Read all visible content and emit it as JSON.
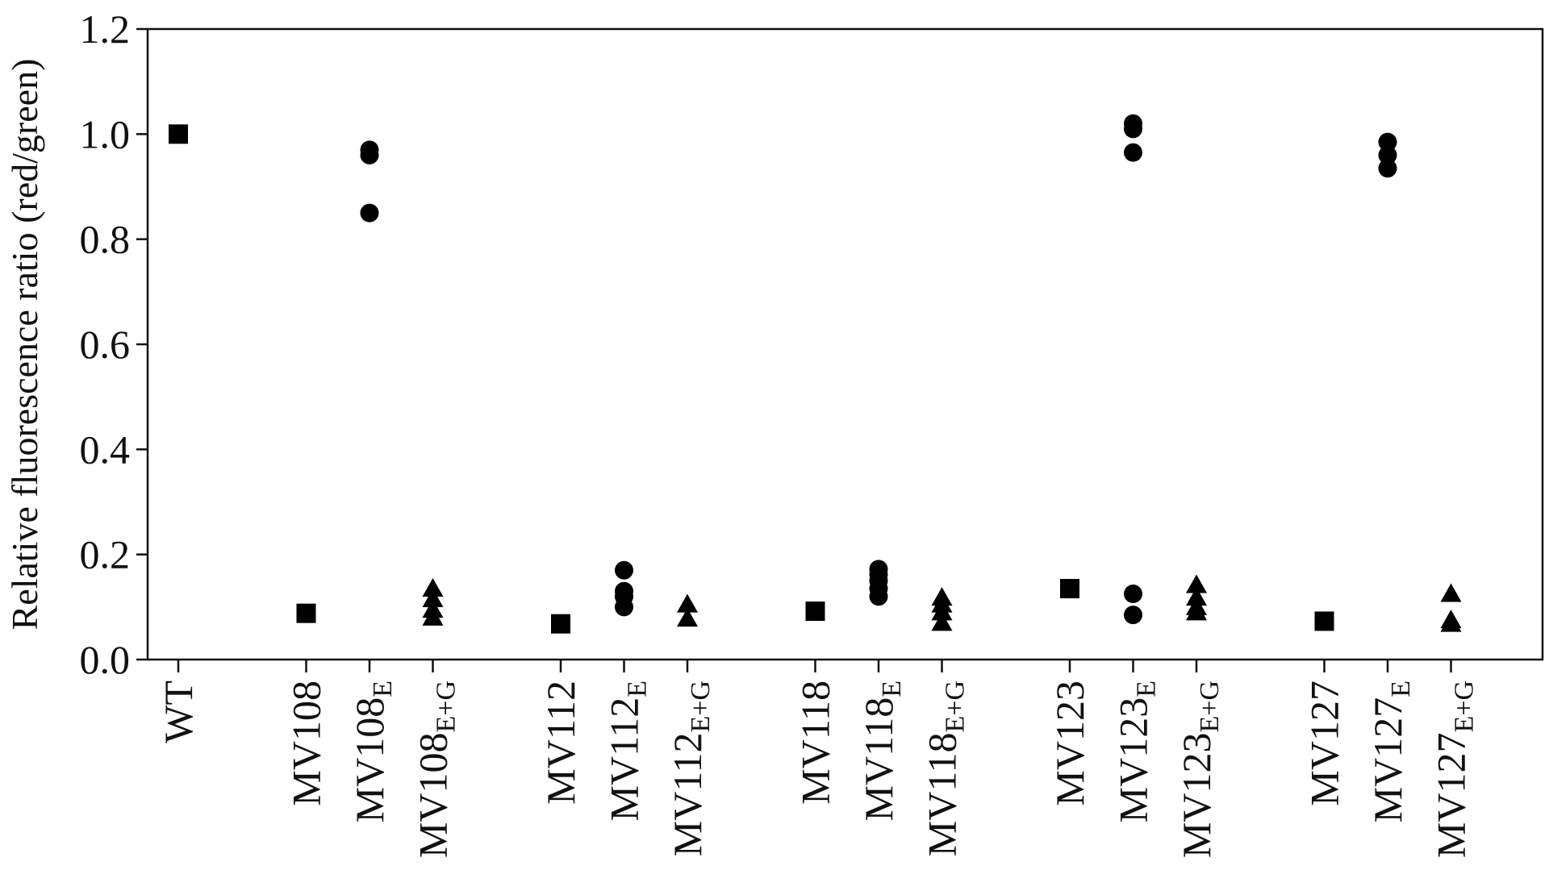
{
  "chart_data": {
    "type": "scatter",
    "ylabel": "Relative fluorescence ratio (red/green)",
    "xlabel": "",
    "ylim": [
      0,
      1.2
    ],
    "yticks": [
      "0.0",
      "0.2",
      "0.4",
      "0.6",
      "0.8",
      "1.0",
      "1.2"
    ],
    "grid": false,
    "legend": "none",
    "categories": [
      {
        "base": "WT",
        "sub": "",
        "marker": "square",
        "values": [
          1.0
        ]
      },
      {
        "base": "MV108",
        "sub": "",
        "marker": "square",
        "values": [
          0.088
        ]
      },
      {
        "base": "MV108",
        "sub": "E",
        "marker": "circle",
        "values": [
          0.85,
          0.96,
          0.97
        ]
      },
      {
        "base": "MV108",
        "sub": "E+G",
        "marker": "triangle",
        "values": [
          0.08,
          0.095,
          0.115,
          0.135
        ]
      },
      {
        "base": "MV112",
        "sub": "",
        "marker": "square",
        "values": [
          0.068
        ]
      },
      {
        "base": "MV112",
        "sub": "E",
        "marker": "circle",
        "values": [
          0.1,
          0.12,
          0.13,
          0.17
        ]
      },
      {
        "base": "MV112",
        "sub": "E+G",
        "marker": "triangle",
        "values": [
          0.078,
          0.105
        ]
      },
      {
        "base": "MV118",
        "sub": "",
        "marker": "square",
        "values": [
          0.092
        ]
      },
      {
        "base": "MV118",
        "sub": "E",
        "marker": "circle",
        "values": [
          0.12,
          0.135,
          0.15,
          0.162,
          0.172
        ]
      },
      {
        "base": "MV118",
        "sub": "E+G",
        "marker": "triangle",
        "values": [
          0.07,
          0.09,
          0.105,
          0.118
        ]
      },
      {
        "base": "MV123",
        "sub": "",
        "marker": "square",
        "values": [
          0.135
        ]
      },
      {
        "base": "MV123",
        "sub": "E",
        "marker": "circle",
        "values": [
          0.085,
          0.125,
          0.965,
          1.01,
          1.02
        ]
      },
      {
        "base": "MV123",
        "sub": "E+G",
        "marker": "triangle",
        "values": [
          0.09,
          0.1,
          0.118,
          0.142
        ]
      },
      {
        "base": "MV127",
        "sub": "",
        "marker": "square",
        "values": [
          0.073
        ]
      },
      {
        "base": "MV127",
        "sub": "E",
        "marker": "circle",
        "values": [
          0.935,
          0.96,
          0.985
        ]
      },
      {
        "base": "MV127",
        "sub": "E+G",
        "marker": "triangle",
        "values": [
          0.068,
          0.075,
          0.125
        ]
      }
    ]
  }
}
